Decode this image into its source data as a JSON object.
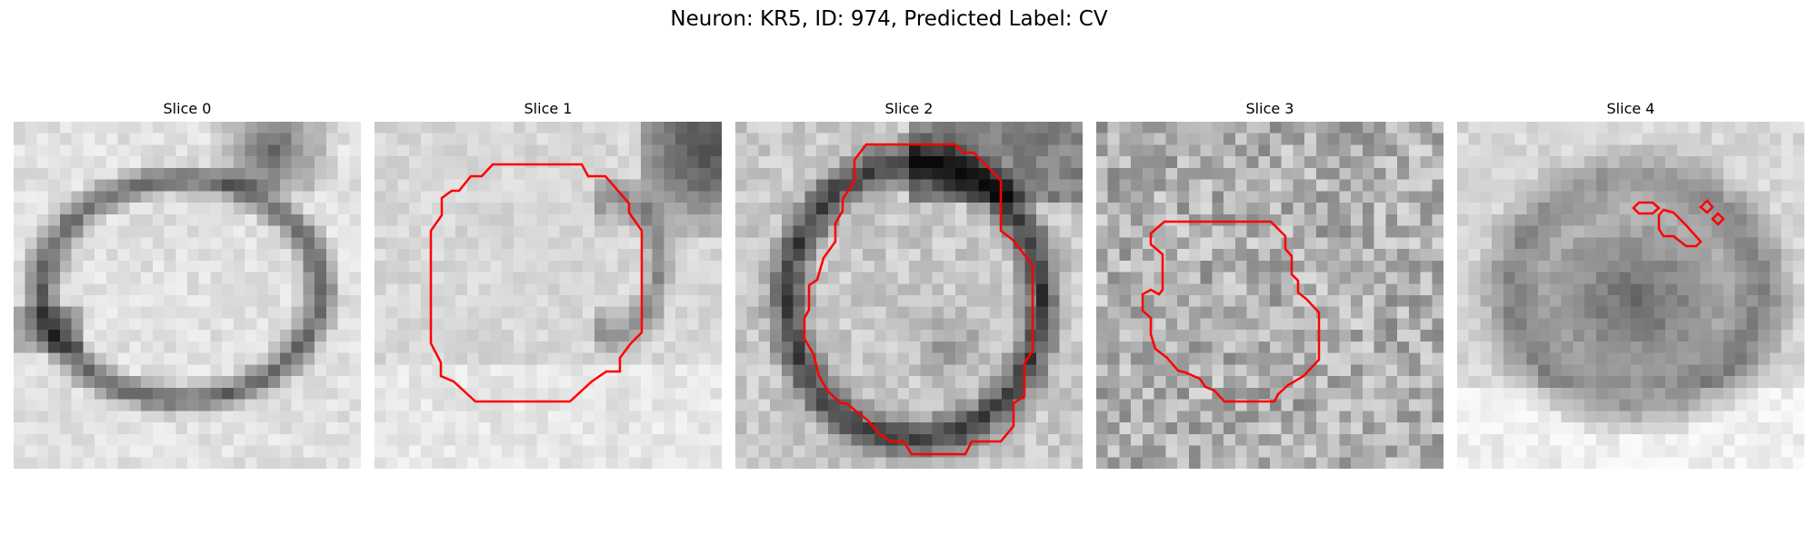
{
  "figure": {
    "title": "Neuron: KR5, ID: 974, Predicted Label: CV"
  },
  "contour_color": "#ff0000",
  "image_colormap": "gray",
  "panels": [
    {
      "title": "Slice 0",
      "has_contour": false
    },
    {
      "title": "Slice 1",
      "has_contour": true
    },
    {
      "title": "Slice 2",
      "has_contour": true
    },
    {
      "title": "Slice 3",
      "has_contour": true
    },
    {
      "title": "Slice 4",
      "has_contour": true
    }
  ]
}
